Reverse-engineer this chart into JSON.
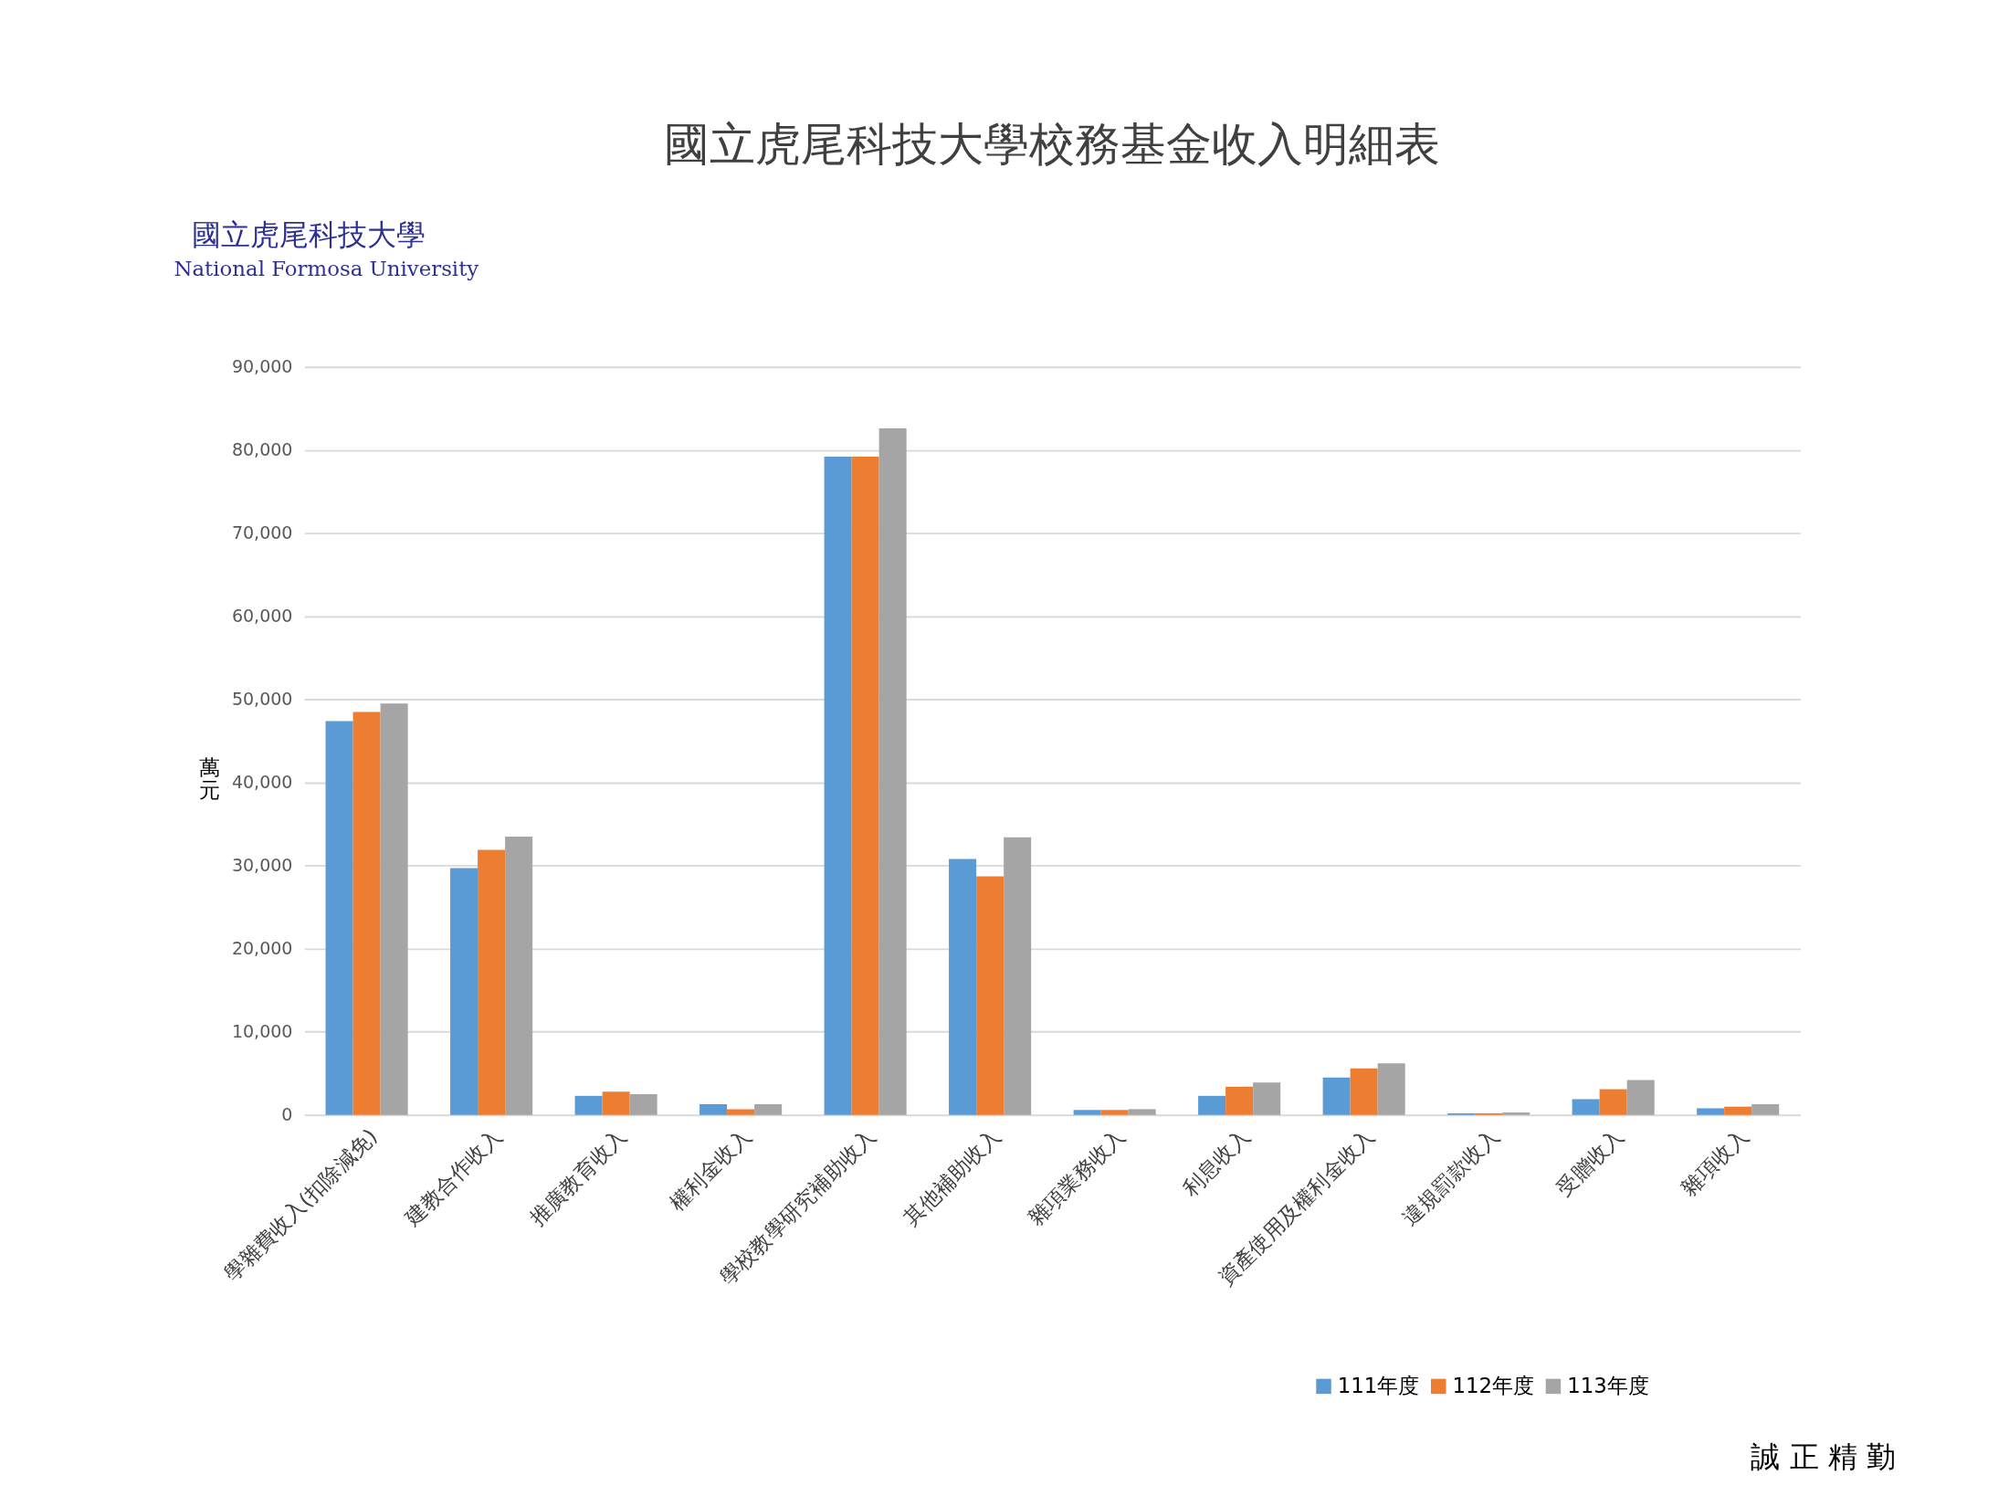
{
  "chart_data": {
    "type": "bar",
    "title": "國立虎尾科技大學校務基金收入明細表",
    "ylabel": "萬元",
    "categories": [
      "學雜費收入(扣除減免)",
      "建教合作收入",
      "推廣教育收入",
      "權利金收入",
      "學校教學研究補助收入",
      "其他補助收入",
      "雜項業務收入",
      "利息收入",
      "資產使用及權利金收入",
      "違規罰款收入",
      "受贈收入",
      "雜項收入"
    ],
    "series": [
      {
        "name": "111年度",
        "color": "#5b9bd5",
        "values": [
          47400,
          29700,
          2300,
          1300,
          79200,
          30800,
          600,
          2300,
          4500,
          200,
          1900,
          800
        ]
      },
      {
        "name": "112年度",
        "color": "#ed7d31",
        "values": [
          48500,
          31900,
          2800,
          700,
          79200,
          28700,
          600,
          3400,
          5600,
          200,
          3100,
          1000
        ]
      },
      {
        "name": "113年度",
        "color": "#a5a5a5",
        "values": [
          49500,
          33500,
          2500,
          1300,
          82600,
          33400,
          700,
          3900,
          6200,
          300,
          4200,
          1300
        ]
      }
    ],
    "ylim": [
      0,
      90000
    ],
    "yticks": [
      0,
      {
        "value": 10000,
        "label": "10,000"
      },
      {
        "value": 20000,
        "label": "20,000"
      },
      {
        "value": 30000,
        "label": "30,000"
      },
      {
        "value": 40000,
        "label": "40,000"
      },
      {
        "value": 50000,
        "label": "50,000"
      },
      {
        "value": 60000,
        "label": "60,000"
      },
      {
        "value": 70000,
        "label": "70,000"
      },
      {
        "value": 80000,
        "label": "80,000"
      },
      {
        "value": 90000,
        "label": "90,000"
      }
    ],
    "grid": "y",
    "legend": "bottom right",
    "annotations": [
      "國立虎尾科技大學",
      "National Formosa University",
      "誠 正 精 勤"
    ]
  }
}
